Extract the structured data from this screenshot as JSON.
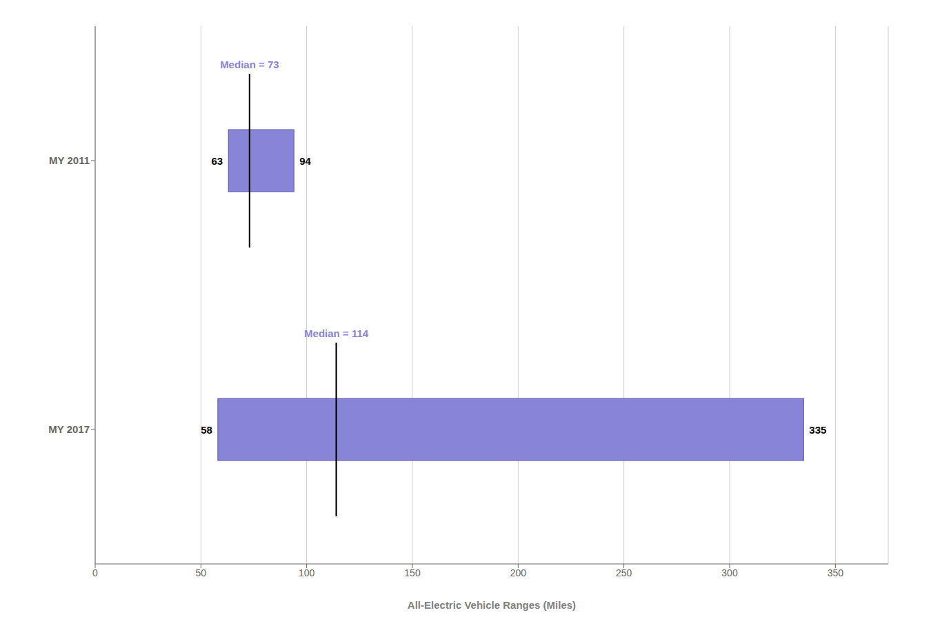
{
  "chart_data": {
    "type": "bar",
    "orientation": "horizontal",
    "categories": [
      "MY 2011",
      "MY 2017"
    ],
    "low": [
      63,
      58
    ],
    "high": [
      94,
      335
    ],
    "median": [
      73,
      114
    ],
    "median_labels": [
      "Median = 73",
      "Median = 114"
    ],
    "data_labels": true,
    "xlabel": "All-Electric Vehicle Ranges (Miles)",
    "xlim": [
      0,
      375
    ],
    "xticks": [
      0,
      50,
      100,
      150,
      200,
      250,
      300,
      350
    ],
    "grid": true
  }
}
